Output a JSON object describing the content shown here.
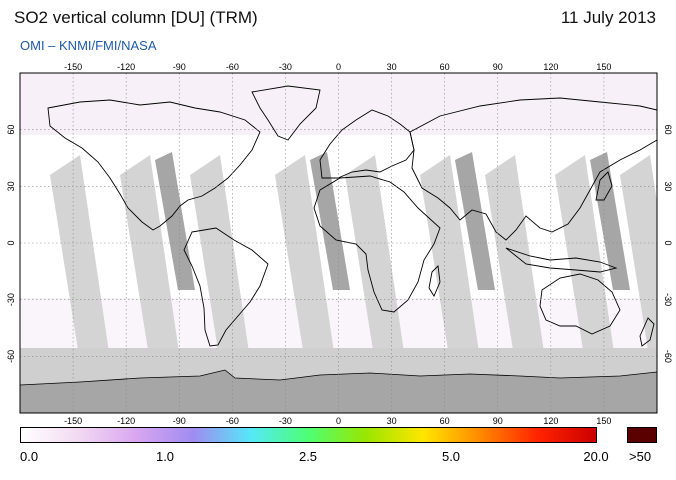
{
  "header": {
    "title": "SO2 vertical column [DU] (TRM)",
    "date": "11 July 2013",
    "subtitle": "OMI  –  KNMI/FMI/NASA"
  },
  "map": {
    "lon_ticks": [
      "-150",
      "-120",
      "-90",
      "-60",
      "-30",
      "0",
      "30",
      "60",
      "90",
      "120",
      "150"
    ],
    "lat_ticks": [
      "60",
      "30",
      "0",
      "-30",
      "-60"
    ],
    "colors": {
      "background": "#ffffff",
      "swath_light": "#d4d4d4",
      "swath_dark": "#a6a6a6",
      "antarctica": "#a6a6a6",
      "polar_band": "#cfcfcf",
      "grid": "#888888"
    }
  },
  "colorbar": {
    "labels": [
      "0.0",
      "1.0",
      "2.5",
      "5.0",
      "20.0"
    ],
    "overflow_label": ">50",
    "overflow_color": "#5a0000",
    "stops": [
      "#ffffff",
      "#f2d9f2",
      "#d9a6f0",
      "#9f8cf0",
      "#55e8f8",
      "#4dff73",
      "#99e600",
      "#ffe600",
      "#ff8800",
      "#ff2200",
      "#cc0000"
    ]
  }
}
